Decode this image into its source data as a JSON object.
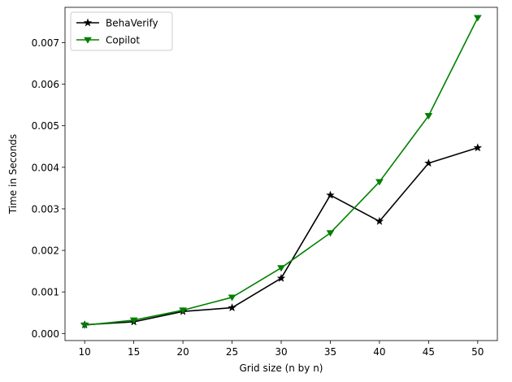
{
  "chart_data": {
    "type": "line",
    "title": "",
    "xlabel": "Grid size (n by n)",
    "ylabel": "Time in Seconds",
    "xlim": [
      8,
      52
    ],
    "ylim": [
      -0.00017,
      0.00785
    ],
    "xticks": [
      10,
      15,
      20,
      25,
      30,
      35,
      40,
      45,
      50
    ],
    "xtick_labels": [
      "10",
      "15",
      "20",
      "25",
      "30",
      "35",
      "40",
      "45",
      "50"
    ],
    "yticks": [
      0,
      0.001,
      0.002,
      0.003,
      0.004,
      0.005,
      0.006,
      0.007
    ],
    "ytick_labels": [
      "0.000",
      "0.001",
      "0.002",
      "0.003",
      "0.004",
      "0.005",
      "0.006",
      "0.007"
    ],
    "grid": false,
    "legend_position": "top-left",
    "x": [
      10,
      15,
      20,
      25,
      30,
      35,
      40,
      45,
      50
    ],
    "series": [
      {
        "name": "BehaVerify",
        "color": "#000000",
        "marker": "star",
        "values": [
          0.00021,
          0.00028,
          0.00053,
          0.00062,
          0.00133,
          0.00333,
          0.0027,
          0.0041,
          0.00447
        ]
      },
      {
        "name": "Copilot",
        "color": "#008000",
        "marker": "triangle-down",
        "values": [
          0.0002,
          0.00032,
          0.00056,
          0.00087,
          0.00158,
          0.00242,
          0.00365,
          0.00524,
          0.0076
        ]
      }
    ]
  }
}
